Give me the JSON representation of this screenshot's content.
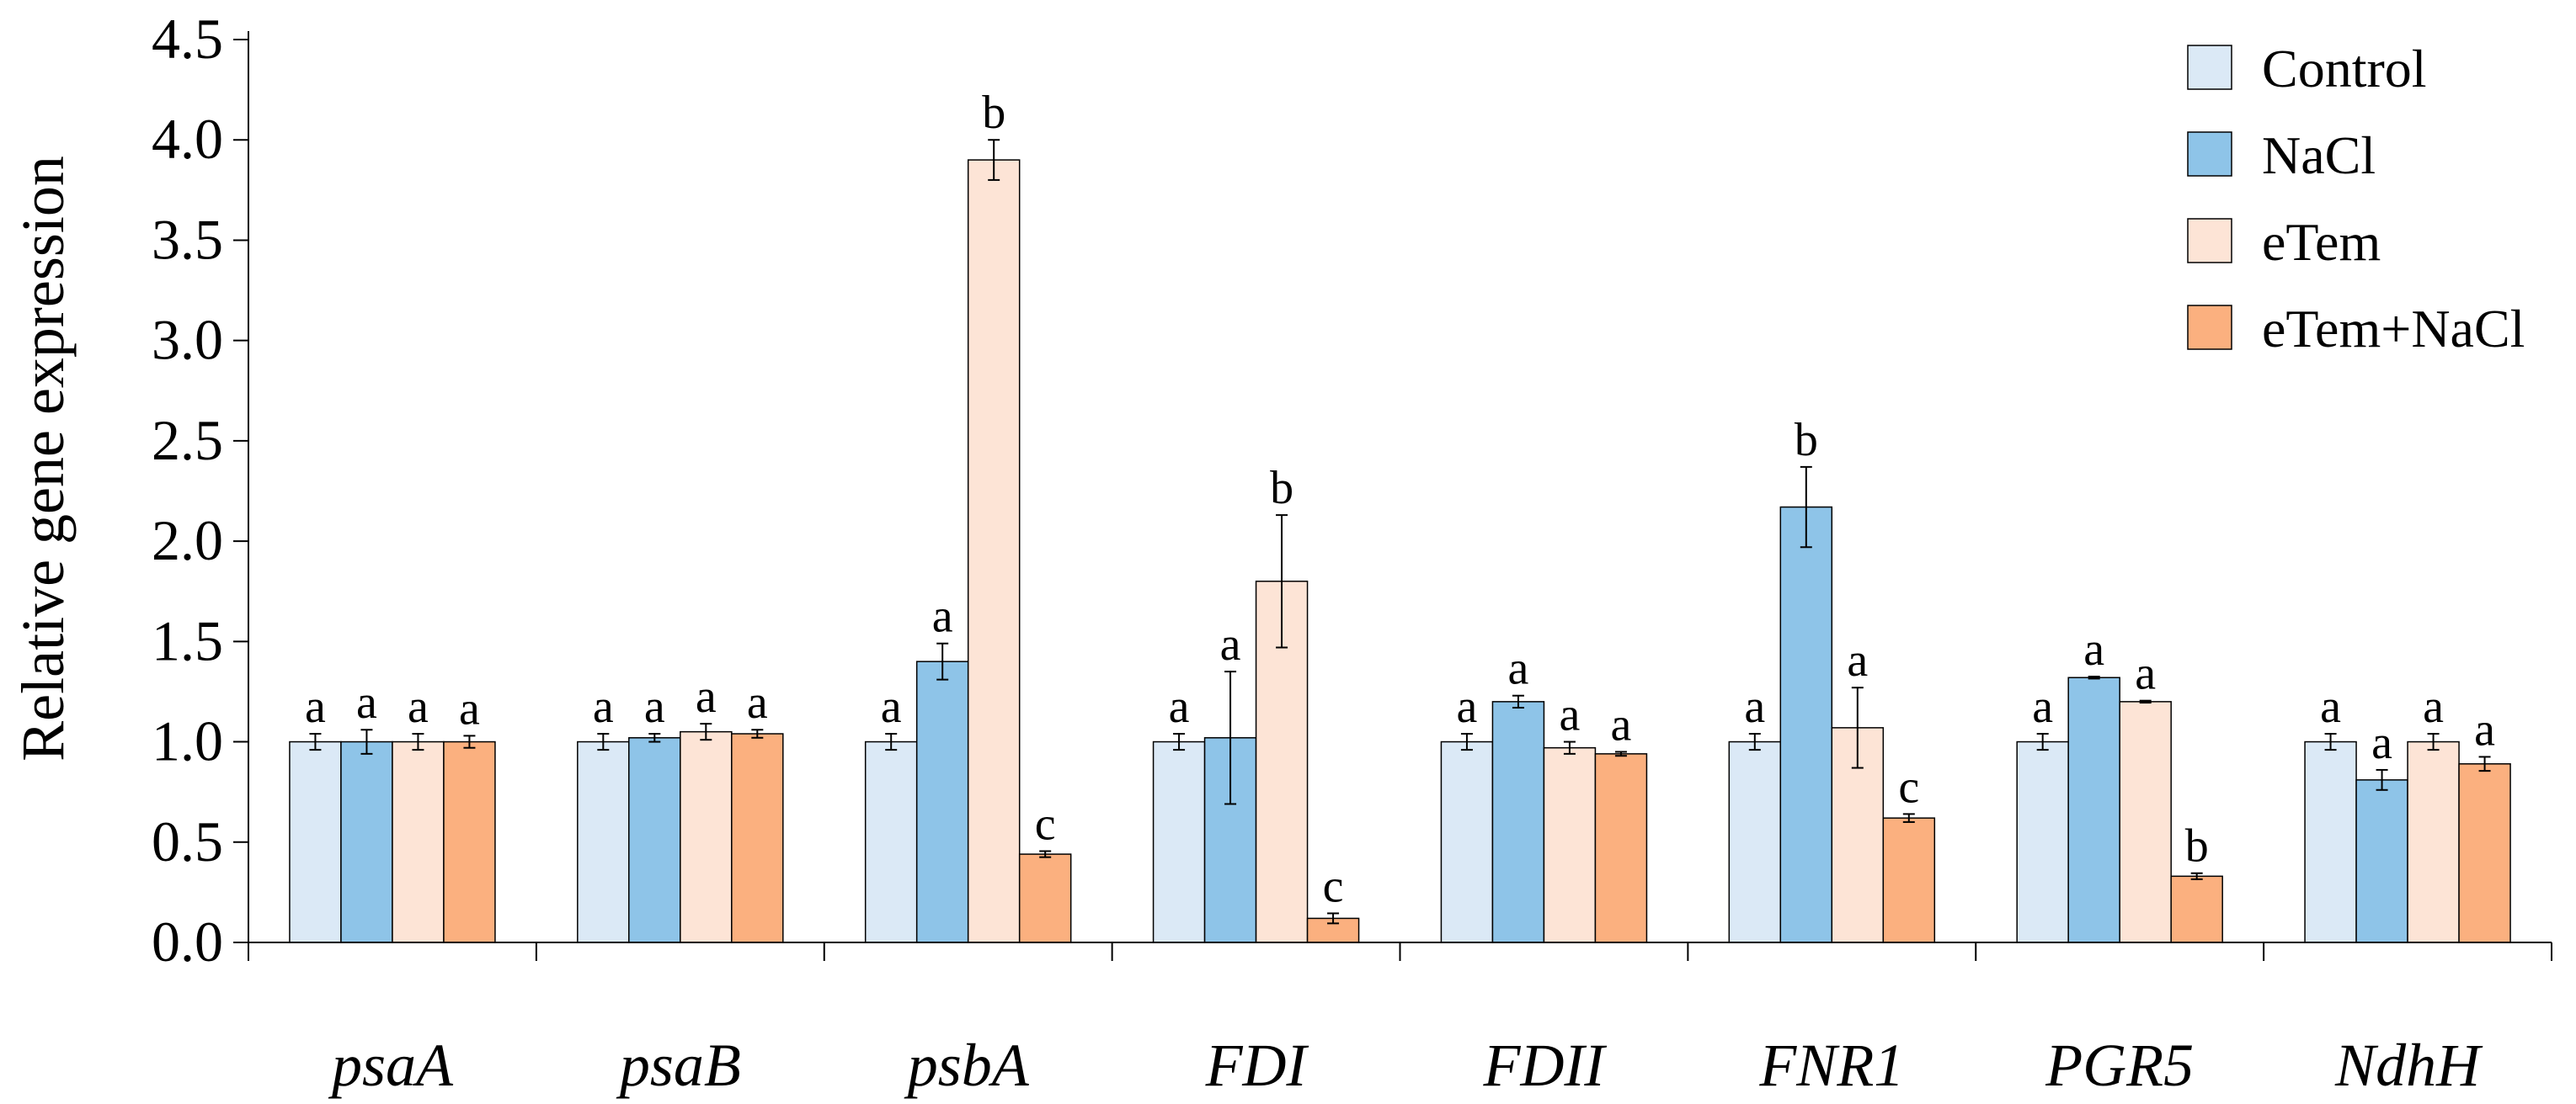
{
  "chart_data": {
    "type": "bar",
    "title": "",
    "xlabel": "",
    "ylabel": "Relative gene expression",
    "ylim": [
      0,
      4.5
    ],
    "yticks": [
      "0.0",
      "0.5",
      "1.0",
      "1.5",
      "2.0",
      "2.5",
      "3.0",
      "3.5",
      "4.0",
      "4.5"
    ],
    "grid": false,
    "legend_position": "top-right",
    "categories": [
      "psaA",
      "psaB",
      "psbA",
      "FDI",
      "FDII",
      "FNR1",
      "PGR5",
      "NdhH"
    ],
    "series": [
      {
        "name": "Control",
        "color": "#dbe9f6",
        "values": [
          1.0,
          1.0,
          1.0,
          1.0,
          1.0,
          1.0,
          1.0,
          1.0
        ],
        "errors": [
          0.04,
          0.04,
          0.04,
          0.04,
          0.04,
          0.04,
          0.04,
          0.04
        ],
        "labels": [
          "a",
          "a",
          "a",
          "a",
          "a",
          "a",
          "a",
          "a"
        ]
      },
      {
        "name": "NaCl",
        "color": "#8ec4e8",
        "values": [
          1.0,
          1.02,
          1.4,
          1.02,
          1.2,
          2.17,
          1.32,
          0.81
        ],
        "errors": [
          0.06,
          0.02,
          0.09,
          0.33,
          0.03,
          0.2,
          0.005,
          0.05
        ],
        "labels": [
          "a",
          "a",
          "a",
          "a",
          "a",
          "b",
          "a",
          "a"
        ]
      },
      {
        "name": "eTem",
        "color": "#fde4d6",
        "values": [
          1.0,
          1.05,
          3.9,
          1.8,
          0.97,
          1.07,
          1.2,
          1.0
        ],
        "errors": [
          0.04,
          0.04,
          0.1,
          0.33,
          0.03,
          0.2,
          0.005,
          0.04
        ],
        "labels": [
          "a",
          "a",
          "b",
          "b",
          "a",
          "a",
          "a",
          "a"
        ]
      },
      {
        "name": "eTem+NaCl",
        "color": "#fbb07f",
        "values": [
          1.0,
          1.04,
          0.44,
          0.12,
          0.94,
          0.62,
          0.33,
          0.89
        ],
        "errors": [
          0.03,
          0.02,
          0.015,
          0.025,
          0.01,
          0.02,
          0.015,
          0.035
        ],
        "labels": [
          "a",
          "a",
          "c",
          "c",
          "a",
          "c",
          "b",
          "a"
        ]
      }
    ]
  }
}
